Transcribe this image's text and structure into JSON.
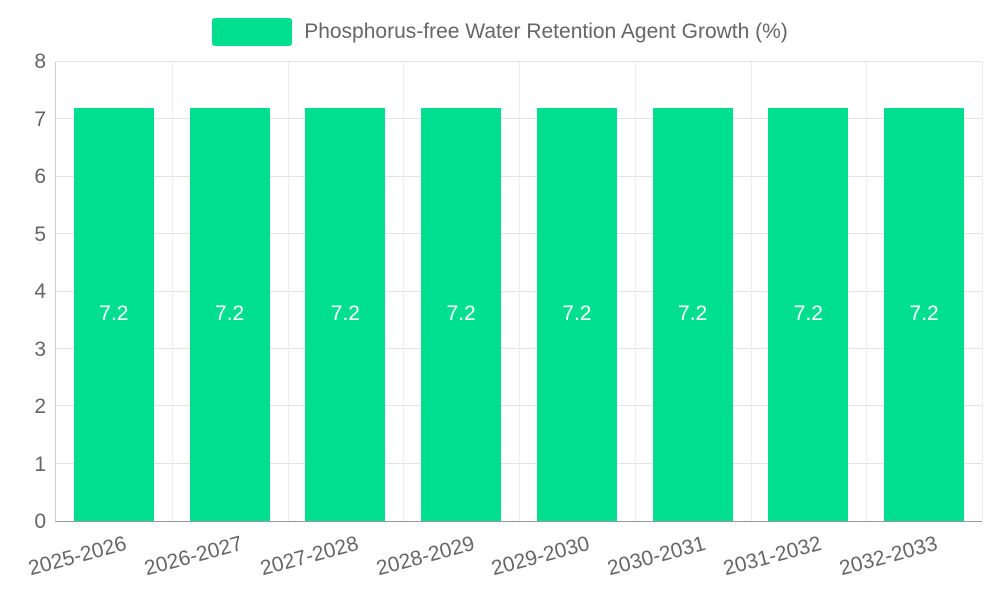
{
  "chart_data": {
    "type": "bar",
    "title": "Phosphorus-free Water Retention Agent Growth (%)",
    "categories": [
      "2025-2026",
      "2026-2027",
      "2027-2028",
      "2028-2029",
      "2029-2030",
      "2030-2031",
      "2031-2032",
      "2032-2033"
    ],
    "values": [
      7.2,
      7.2,
      7.2,
      7.2,
      7.2,
      7.2,
      7.2,
      7.2
    ],
    "value_labels": [
      "7.2",
      "7.2",
      "7.2",
      "7.2",
      "7.2",
      "7.2",
      "7.2",
      "7.2"
    ],
    "xlabel": "",
    "ylabel": "",
    "ylim": [
      0,
      8
    ],
    "y_ticks": [
      0,
      1,
      2,
      3,
      4,
      5,
      6,
      7,
      8
    ],
    "grid": true,
    "legend_position": "top-center",
    "bar_color": "#00df8f",
    "bar_label_color": "#ffffff",
    "axis_text_color": "#666666",
    "gridline_color": "#e3e3e3"
  },
  "legend": {
    "label": "Phosphorus-free Water Retention Agent Growth (%)"
  }
}
